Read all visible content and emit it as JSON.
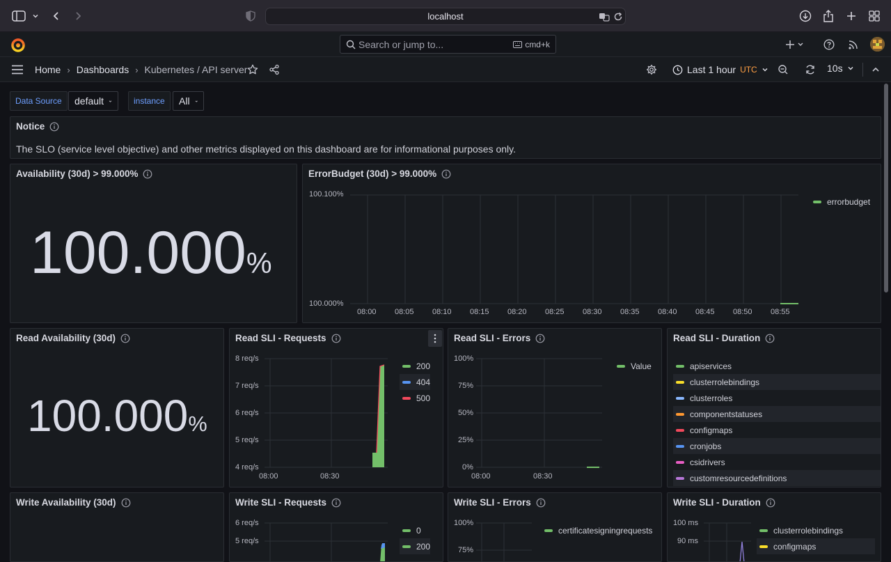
{
  "browser": {
    "url": "localhost"
  },
  "topbar": {
    "search_placeholder": "Search or jump to...",
    "search_shortcut": "cmd+k"
  },
  "nav": {
    "breadcrumbs": [
      "Home",
      "Dashboards",
      "Kubernetes / API server"
    ],
    "time_range": "Last 1 hour",
    "timezone": "UTC",
    "refresh_interval": "10s"
  },
  "variables": [
    {
      "label": "Data Source",
      "value": "default"
    },
    {
      "label": "instance",
      "value": "All"
    }
  ],
  "panels": {
    "notice": {
      "title": "Notice",
      "text": "The SLO (service level objective) and other metrics displayed on this dashboard are for informational purposes only."
    },
    "availability": {
      "title": "Availability (30d) > 99.000%",
      "value": "100.000",
      "unit": "%"
    },
    "error_budget": {
      "title": "ErrorBudget (30d) > 99.000%",
      "y_ticks": [
        "100.100%",
        "100.000%"
      ],
      "x_ticks": [
        "08:00",
        "08:05",
        "08:10",
        "08:15",
        "08:20",
        "08:25",
        "08:30",
        "08:35",
        "08:40",
        "08:45",
        "08:50",
        "08:55"
      ],
      "legend": [
        "errorbudget"
      ]
    },
    "read_availability": {
      "title": "Read Availability (30d)",
      "value": "100.000",
      "unit": "%"
    },
    "read_requests": {
      "title": "Read SLI - Requests",
      "y_ticks": [
        "8 req/s",
        "7 req/s",
        "6 req/s",
        "5 req/s",
        "4 req/s"
      ],
      "x_ticks": [
        "08:00",
        "08:30"
      ],
      "legend": [
        "200",
        "404",
        "500"
      ]
    },
    "read_errors": {
      "title": "Read SLI - Errors",
      "y_ticks": [
        "100%",
        "75%",
        "50%",
        "25%",
        "0%"
      ],
      "x_ticks": [
        "08:00",
        "08:30"
      ],
      "legend": [
        "Value"
      ]
    },
    "read_duration": {
      "title": "Read SLI - Duration",
      "legend": [
        "apiservices",
        "clusterrolebindings",
        "clusterroles",
        "componentstatuses",
        "configmaps",
        "cronjobs",
        "csidrivers",
        "customresourcedefinitions"
      ]
    },
    "write_availability": {
      "title": "Write Availability (30d)"
    },
    "write_requests": {
      "title": "Write SLI - Requests",
      "y_ticks": [
        "6 req/s",
        "5 req/s"
      ],
      "legend": [
        "0",
        "200"
      ]
    },
    "write_errors": {
      "title": "Write SLI - Errors",
      "y_ticks": [
        "100%",
        "75%"
      ],
      "legend": [
        "certificatesigningrequests"
      ]
    },
    "write_duration": {
      "title": "Write SLI - Duration",
      "y_ticks": [
        "100 ms",
        "90 ms"
      ],
      "legend": [
        "clusterrolebindings",
        "configmaps"
      ]
    }
  },
  "colors": {
    "green": "#73bf69",
    "blue": "#5794f2",
    "red": "#f2495c",
    "yellow": "#fade2a",
    "cyan": "#8ab8ff",
    "orange": "#ff9830",
    "purple": "#b877d9",
    "pink": "#e85ec4",
    "accent": "#6e9fff"
  }
}
